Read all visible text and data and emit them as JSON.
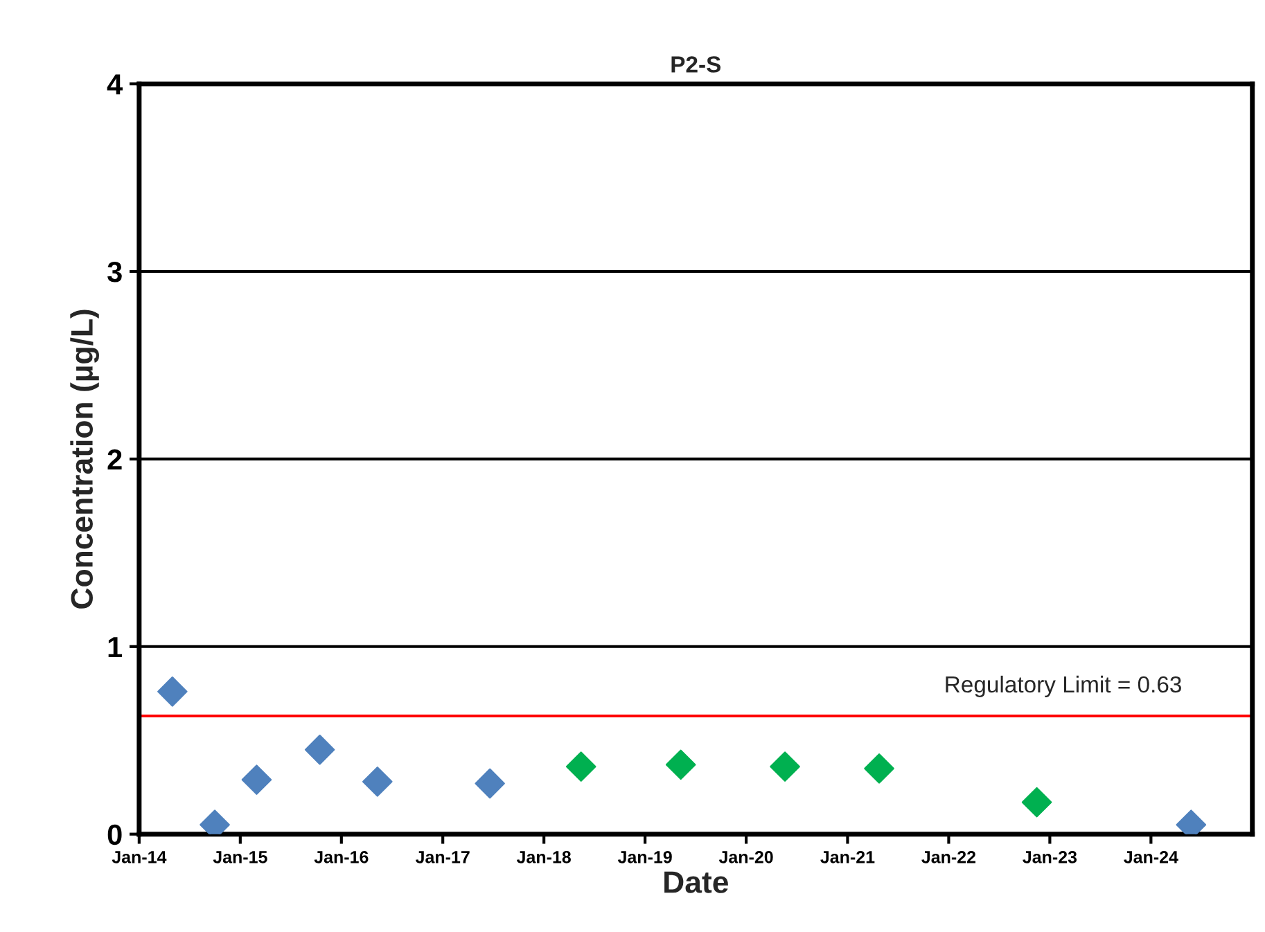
{
  "chart_data": {
    "type": "scatter",
    "title": "P2-S",
    "xlabel": "Date",
    "ylabel": "Concentration (µg/L)",
    "marker": "diamond",
    "grid": "y",
    "legend": false,
    "xlim": [
      "2014-01-01",
      "2025-01-01"
    ],
    "xticks": [
      {
        "value": "2014-01-01",
        "label": "Jan-14"
      },
      {
        "value": "2015-01-01",
        "label": "Jan-15"
      },
      {
        "value": "2016-01-01",
        "label": "Jan-16"
      },
      {
        "value": "2017-01-01",
        "label": "Jan-17"
      },
      {
        "value": "2018-01-01",
        "label": "Jan-18"
      },
      {
        "value": "2019-01-01",
        "label": "Jan-19"
      },
      {
        "value": "2020-01-01",
        "label": "Jan-20"
      },
      {
        "value": "2021-01-01",
        "label": "Jan-21"
      },
      {
        "value": "2022-01-01",
        "label": "Jan-22"
      },
      {
        "value": "2023-01-01",
        "label": "Jan-23"
      },
      {
        "value": "2024-01-01",
        "label": "Jan-24"
      }
    ],
    "ylim": [
      0,
      4
    ],
    "yticks": [
      0,
      1,
      2,
      3,
      4
    ],
    "series": [
      {
        "color": "#4f81bd",
        "x": [
          "2014-05-01",
          "2015-03-01",
          "2015-10-15",
          "2016-05-10",
          "2017-06-20"
        ],
        "values": [
          0.76,
          0.29,
          0.45,
          0.28,
          0.27
        ]
      },
      {
        "color": "#4f81bd",
        "x": [
          "2014-10-01",
          "2024-05-25"
        ],
        "values": [
          0.05,
          0.05
        ]
      },
      {
        "color": "#00b050",
        "x": [
          "2018-05-15",
          "2019-05-10",
          "2020-05-20",
          "2021-04-25",
          "2022-11-15"
        ],
        "values": [
          0.36,
          0.37,
          0.36,
          0.35,
          0.17
        ]
      }
    ],
    "ref_lines": [
      {
        "axis": "y",
        "value": 0.63,
        "label": "Regulatory Limit = 0.63",
        "color": "#ff0000"
      }
    ]
  }
}
